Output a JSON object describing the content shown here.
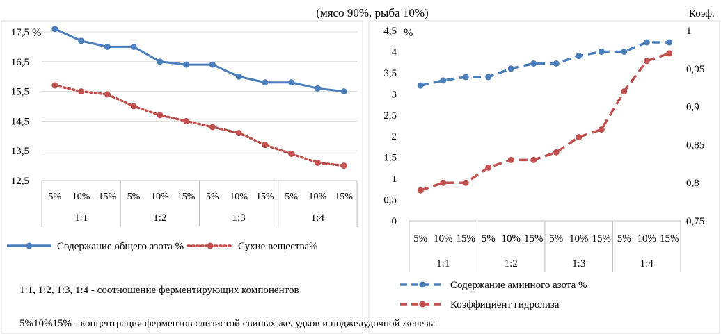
{
  "header": {
    "title": "(мясо 90%, рыба 10%)"
  },
  "colors": {
    "blue": "#4a7ebb",
    "red": "#c0504d",
    "grid": "#d9d9d9",
    "axis": "#bfbfbf"
  },
  "chart_data": [
    {
      "type": "line",
      "unit_label": "%",
      "categories": [
        "5%",
        "10%",
        "15%",
        "5%",
        "10%",
        "15%",
        "5%",
        "10%",
        "15%",
        "5%",
        "10%",
        "15%"
      ],
      "groups": [
        "1:1",
        "1:2",
        "1:3",
        "1:4"
      ],
      "ylim": [
        12.5,
        17.5
      ],
      "yticks": [
        12.5,
        13.5,
        14.5,
        15.5,
        16.5,
        17.5
      ],
      "ytick_labels": [
        "12,5",
        "13,5",
        "14,5",
        "15,5",
        "16,5",
        "17,5"
      ],
      "series": [
        {
          "name": "Содержание общего азота %",
          "style": "solid",
          "color": "#4a7ebb",
          "values": [
            17.6,
            17.2,
            17.0,
            17.0,
            16.5,
            16.4,
            16.4,
            16.0,
            15.8,
            15.8,
            15.6,
            15.5
          ]
        },
        {
          "name": "Сухие вещества%",
          "style": "dotted",
          "color": "#c0504d",
          "values": [
            15.7,
            15.5,
            15.4,
            15.0,
            14.7,
            14.5,
            14.3,
            14.1,
            13.7,
            13.4,
            13.1,
            13.0
          ]
        }
      ]
    },
    {
      "type": "line",
      "unit_label": "%",
      "right_unit_label": "Коэф.",
      "categories": [
        "5%",
        "10%",
        "15%",
        "5%",
        "10%",
        "15%",
        "5%",
        "10%",
        "15%",
        "5%",
        "10%",
        "15%"
      ],
      "groups": [
        "1:1",
        "1:2",
        "1:3",
        "1:4"
      ],
      "ylim": [
        0,
        4.5
      ],
      "yticks": [
        0,
        0.5,
        1,
        1.5,
        2,
        2.5,
        3,
        3.5,
        4,
        4.5
      ],
      "ytick_labels": [
        "0",
        "0,5",
        "1",
        "1,5",
        "2",
        "2,5",
        "3",
        "3,5",
        "4",
        "4,5"
      ],
      "y2lim": [
        0.75,
        1
      ],
      "y2ticks": [
        0.75,
        0.8,
        0.85,
        0.9,
        0.95,
        1
      ],
      "y2tick_labels": [
        "0,75",
        "0,8",
        "0,85",
        "0,9",
        "0,95",
        "1"
      ],
      "series": [
        {
          "name": "Содержание аминного азота %",
          "style": "dashed",
          "color": "#4a7ebb",
          "axis": "left",
          "values": [
            3.2,
            3.32,
            3.4,
            3.4,
            3.6,
            3.72,
            3.72,
            3.9,
            4.0,
            4.0,
            4.22,
            4.22
          ]
        },
        {
          "name": "Коэффициент гидролиза",
          "style": "dashed",
          "color": "#c0504d",
          "axis": "right",
          "values": [
            0.79,
            0.8,
            0.8,
            0.82,
            0.83,
            0.83,
            0.84,
            0.86,
            0.87,
            0.92,
            0.96,
            0.97
          ]
        }
      ]
    }
  ],
  "notes": {
    "ratio": "1:1, 1:2, 1:3, 1:4 - соотношение ферментирующих компонентов",
    "concentration": "5%10%15% -  концентрация ферментов слизистой свиных желудков и поджелудочной железы"
  }
}
